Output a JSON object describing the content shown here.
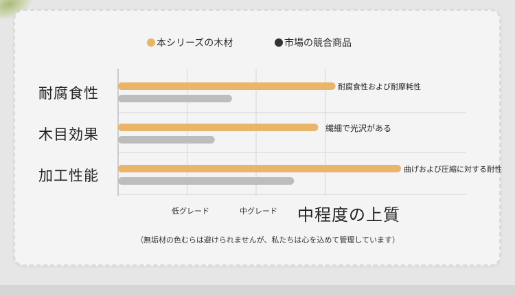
{
  "colors": {
    "ours": "#e9b56a",
    "market": "#bdbdbd"
  },
  "legend": {
    "ours": {
      "label": "本シリーズの木材"
    },
    "market": {
      "label": "市場の競合商品"
    }
  },
  "chart_data": {
    "type": "bar",
    "orientation": "horizontal",
    "categories": [
      "耐腐食性",
      "木目効果",
      "加工性能"
    ],
    "series": [
      {
        "name": "本シリーズの木材",
        "values": [
          3.15,
          2.9,
          4.1
        ]
      },
      {
        "name": "市場の競合商品",
        "values": [
          1.65,
          1.4,
          2.55
        ]
      }
    ],
    "xlim": [
      0,
      5
    ],
    "x_tick_labels": [
      {
        "value": 1,
        "label": "低グレード"
      },
      {
        "value": 2,
        "label": "中グレード"
      },
      {
        "value": 3,
        "label": "中程度の上質"
      }
    ],
    "annotations": [
      "耐腐食性および耐摩耗性",
      "繊細で光沢がある",
      "曲げおよび圧縮に対する耐性"
    ],
    "grid": true,
    "legend_position": "top"
  },
  "footnote": "（無垢材の色むらは避けられませんが、私たちは心を込めて管理しています）"
}
